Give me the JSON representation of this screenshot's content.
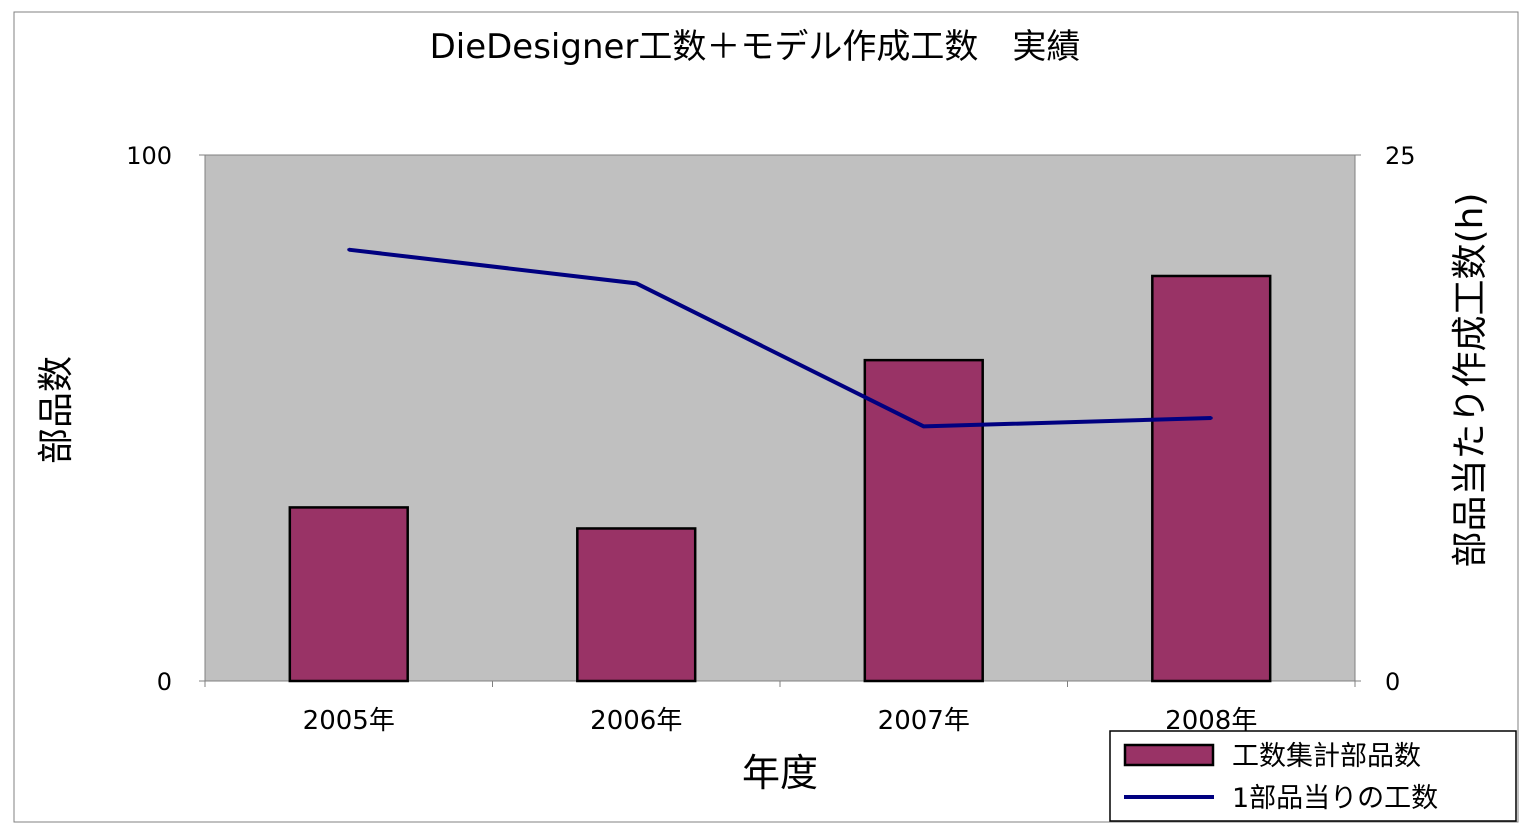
{
  "chart_data": {
    "type": "bar",
    "title": "DieDesigner工数＋モデル作成工数　実績",
    "xlabel": "年度",
    "ylabel": "部品数",
    "ylabel_right": "部品当たり作成工数(h)",
    "categories": [
      "2005年",
      "2006年",
      "2007年",
      "2008年"
    ],
    "ylim": [
      0,
      100
    ],
    "ylim_right": [
      0,
      25
    ],
    "yticks": [
      "0",
      "100"
    ],
    "yticks_right": [
      "0",
      "25"
    ],
    "series": [
      {
        "name": "工数集計部品数",
        "type": "bar",
        "axis": "left",
        "color": "#993366",
        "values": [
          33,
          29,
          61,
          77
        ]
      },
      {
        "name": "1部品当りの工数",
        "type": "line",
        "axis": "right",
        "color": "#000080",
        "values": [
          20.5,
          18.9,
          12.1,
          12.5
        ]
      }
    ],
    "grid": false,
    "plot_background": "#c0c0c0",
    "legend_position": "bottom-right"
  }
}
